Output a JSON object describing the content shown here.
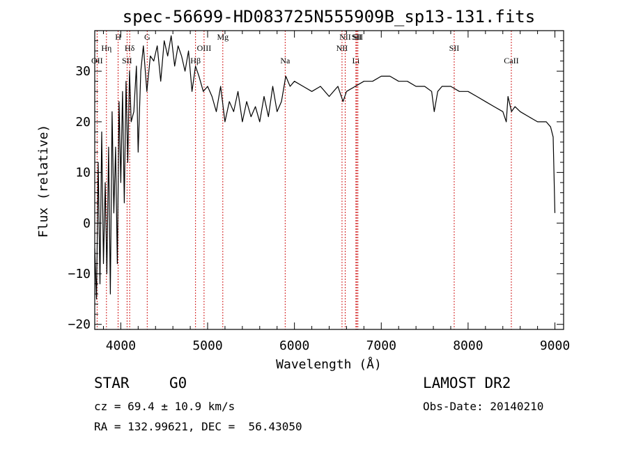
{
  "chart_data": {
    "type": "line",
    "title": "spec-56699-HD083725N555909B_sp13-131.fits",
    "xlabel": "Wavelength (Å)",
    "ylabel": "Flux (relative)",
    "xlim": [
      3700,
      9100
    ],
    "ylim": [
      -21,
      38
    ],
    "xticks": [
      4000,
      5000,
      6000,
      7000,
      8000,
      9000
    ],
    "yticks": [
      -20,
      -10,
      0,
      10,
      20,
      30
    ],
    "grid": false,
    "line_color": "#000000",
    "marker_color": "#cc0000",
    "spectrum": {
      "name": "",
      "x": [
        3700,
        3720,
        3740,
        3760,
        3780,
        3800,
        3820,
        3840,
        3860,
        3880,
        3900,
        3920,
        3940,
        3960,
        3980,
        4000,
        4020,
        4040,
        4060,
        4080,
        4100,
        4120,
        4150,
        4180,
        4200,
        4230,
        4260,
        4300,
        4340,
        4380,
        4420,
        4460,
        4500,
        4540,
        4580,
        4620,
        4660,
        4700,
        4740,
        4780,
        4820,
        4860,
        4900,
        4950,
        5000,
        5050,
        5100,
        5150,
        5200,
        5250,
        5300,
        5350,
        5400,
        5450,
        5500,
        5550,
        5600,
        5650,
        5700,
        5750,
        5800,
        5850,
        5900,
        5950,
        6000,
        6100,
        6200,
        6300,
        6400,
        6500,
        6560,
        6600,
        6700,
        6800,
        6900,
        7000,
        7100,
        7200,
        7300,
        7400,
        7500,
        7580,
        7610,
        7650,
        7700,
        7800,
        7900,
        8000,
        8100,
        8200,
        8300,
        8400,
        8440,
        8460,
        8500,
        8540,
        8600,
        8700,
        8800,
        8900,
        8950,
        8980,
        9000
      ],
      "y": [
        -5,
        -15,
        12,
        -12,
        18,
        -8,
        8,
        -10,
        15,
        -14,
        22,
        2,
        15,
        -8,
        24,
        8,
        26,
        4,
        28,
        12,
        30,
        20,
        22,
        31,
        14,
        30,
        35,
        26,
        33,
        32,
        35,
        28,
        36,
        33,
        37,
        31,
        35,
        33,
        30,
        34,
        26,
        31,
        29,
        26,
        27,
        25,
        22,
        27,
        20,
        24,
        22,
        26,
        20,
        24,
        21,
        23,
        20,
        25,
        21,
        27,
        22,
        24,
        29,
        27,
        28,
        27,
        26,
        27,
        25,
        27,
        24,
        26,
        27,
        28,
        28,
        29,
        29,
        28,
        28,
        27,
        27,
        26,
        22,
        26,
        27,
        27,
        26,
        26,
        25,
        24,
        23,
        22,
        20,
        25,
        22,
        23,
        22,
        21,
        20,
        20,
        19,
        17,
        2
      ]
    },
    "lines": [
      {
        "name": "OII",
        "x": 3727,
        "row": 3
      },
      {
        "name": "Hη",
        "x": 3835,
        "row": 2
      },
      {
        "name": "H",
        "x": 3969,
        "row": 1
      },
      {
        "name": "Hδ",
        "x": 4102,
        "row": 2
      },
      {
        "name": "SII",
        "x": 4072,
        "row": 3
      },
      {
        "name": "G",
        "x": 4304,
        "row": 1
      },
      {
        "name": "Hβ",
        "x": 4861,
        "row": 3
      },
      {
        "name": "OIII",
        "x": 4959,
        "row": 2
      },
      {
        "name": "Mg",
        "x": 5175,
        "row": 1
      },
      {
        "name": "Na",
        "x": 5893,
        "row": 3
      },
      {
        "name": "NII",
        "x": 6548,
        "row": 2
      },
      {
        "name": "NII",
        "x": 6584,
        "row": 1
      },
      {
        "name": "SII",
        "x": 6717,
        "row": 1
      },
      {
        "name": "Li",
        "x": 6708,
        "row": 3
      },
      {
        "name": "SII",
        "x": 6731,
        "row": 0
      },
      {
        "name": "SII",
        "x": 7840,
        "row": 2
      },
      {
        "name": "CaII",
        "x": 8498,
        "row": 3
      }
    ],
    "label_rows_y": [
      57,
      57,
      73,
      91
    ]
  },
  "info": {
    "object_type": "STAR",
    "subclass": "G0",
    "survey": "LAMOST DR2",
    "cz": "cz = 69.4 ± 10.9 km/s",
    "obs_date": "Obs-Date: 20140210",
    "coords": "RA = 132.99621, DEC =  56.43050"
  }
}
